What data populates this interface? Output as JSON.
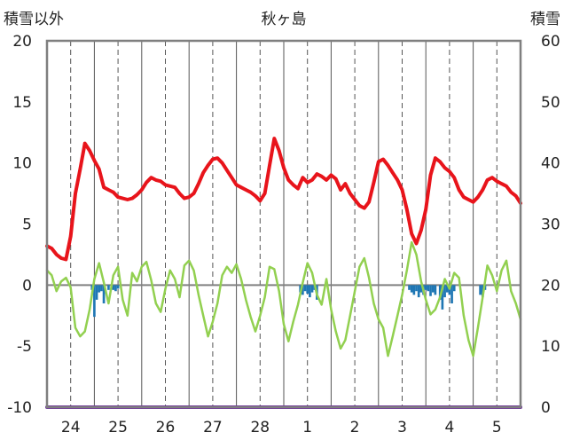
{
  "chart_data": {
    "type": "line",
    "title": "秋ヶ島",
    "left_axis_title": "積雪以外",
    "right_axis_title": "積雪",
    "ylim": [
      -10,
      20
    ],
    "y_ticks": [
      -10,
      -5,
      0,
      5,
      10,
      15,
      20
    ],
    "y2lim": [
      0,
      60
    ],
    "y2_ticks": [
      0,
      10,
      20,
      30,
      40,
      50,
      60
    ],
    "x_tick_labels": [
      "24",
      "25",
      "26",
      "27",
      "28",
      "1",
      "2",
      "3",
      "4",
      "5"
    ],
    "grid": "dashed vertical at each day label, solid vertical between days, no horizontal gridlines",
    "colors": {
      "red": "#e8141b",
      "green": "#92d050",
      "blue": "#1f77b4",
      "purple": "#7030a0",
      "grid": "#555555",
      "frame": "#7f7f7f"
    },
    "series": [
      {
        "color": "red",
        "axis": "left",
        "x": [
          0.0,
          0.1,
          0.2,
          0.3,
          0.4,
          0.5,
          0.6,
          0.7,
          0.8,
          0.9,
          1.0,
          1.1,
          1.2,
          1.3,
          1.4,
          1.5,
          1.6,
          1.7,
          1.8,
          1.9,
          2.0,
          2.1,
          2.2,
          2.3,
          2.4,
          2.5,
          2.6,
          2.7,
          2.8,
          2.9,
          3.0,
          3.1,
          3.2,
          3.3,
          3.4,
          3.5,
          3.6,
          3.7,
          3.8,
          3.9,
          4.0,
          4.1,
          4.2,
          4.3,
          4.4,
          4.5,
          4.6,
          4.7,
          4.8,
          4.9,
          5.0,
          5.1,
          5.2,
          5.3,
          5.4,
          5.5,
          5.6,
          5.7,
          5.8,
          5.9,
          6.0,
          6.1,
          6.2,
          6.3,
          6.4,
          6.5,
          6.6,
          6.7,
          6.8,
          6.9,
          7.0,
          7.1,
          7.2,
          7.3,
          7.4,
          7.5,
          7.6,
          7.7,
          7.8,
          7.9,
          8.0,
          8.1,
          8.2,
          8.3,
          8.4,
          8.5,
          8.6,
          8.7,
          8.8,
          8.9,
          9.0,
          9.1,
          9.2,
          9.3,
          9.4,
          9.5,
          9.6,
          9.7,
          9.8,
          9.9,
          10.0
        ],
        "values": [
          3.2,
          3.0,
          2.5,
          2.2,
          2.1,
          4.0,
          7.5,
          9.5,
          11.6,
          11.0,
          10.2,
          9.5,
          8.0,
          7.8,
          7.6,
          7.2,
          7.1,
          7.0,
          7.1,
          7.4,
          7.8,
          8.4,
          8.8,
          8.6,
          8.5,
          8.2,
          8.1,
          8.0,
          7.5,
          7.1,
          7.2,
          7.5,
          8.3,
          9.2,
          9.8,
          10.3,
          10.4,
          10.0,
          9.4,
          8.8,
          8.2,
          8.0,
          7.8,
          7.6,
          7.3,
          6.9,
          7.5,
          9.8,
          12.0,
          11.0,
          9.6,
          8.6,
          8.2,
          7.9,
          8.8,
          8.4,
          8.6,
          9.1,
          8.9,
          8.6,
          9.0,
          8.7,
          7.8,
          8.3,
          7.5,
          7.0,
          6.5,
          6.3,
          6.8,
          8.4,
          10.1,
          10.3,
          9.8,
          9.2,
          8.6,
          7.8,
          6.2,
          4.2,
          3.4,
          4.5,
          6.2,
          9.0,
          10.4,
          10.1,
          9.6,
          9.3,
          8.8,
          7.8,
          7.2,
          7.0,
          6.8,
          7.2,
          7.8,
          8.6,
          8.8,
          8.5,
          8.3,
          8.1,
          7.6,
          7.3,
          6.7
        ]
      },
      {
        "color": "green",
        "axis": "left",
        "x": [
          0.0,
          0.1,
          0.2,
          0.3,
          0.4,
          0.5,
          0.6,
          0.7,
          0.8,
          0.9,
          1.0,
          1.1,
          1.2,
          1.3,
          1.4,
          1.5,
          1.6,
          1.7,
          1.8,
          1.9,
          2.0,
          2.1,
          2.2,
          2.3,
          2.4,
          2.5,
          2.6,
          2.7,
          2.8,
          2.9,
          3.0,
          3.1,
          3.2,
          3.3,
          3.4,
          3.5,
          3.6,
          3.7,
          3.8,
          3.9,
          4.0,
          4.1,
          4.2,
          4.3,
          4.4,
          4.5,
          4.6,
          4.7,
          4.8,
          4.9,
          5.0,
          5.1,
          5.2,
          5.3,
          5.4,
          5.5,
          5.6,
          5.7,
          5.8,
          5.9,
          6.0,
          6.1,
          6.2,
          6.3,
          6.4,
          6.5,
          6.6,
          6.7,
          6.8,
          6.9,
          7.0,
          7.1,
          7.2,
          7.3,
          7.4,
          7.5,
          7.6,
          7.7,
          7.8,
          7.9,
          8.0,
          8.1,
          8.2,
          8.3,
          8.4,
          8.5,
          8.6,
          8.7,
          8.8,
          8.9,
          9.0,
          9.1,
          9.2,
          9.3,
          9.4,
          9.5,
          9.6,
          9.7,
          9.8,
          9.9,
          10.0
        ],
        "values": [
          1.2,
          0.8,
          -0.5,
          0.3,
          0.6,
          -0.2,
          -3.5,
          -4.2,
          -3.8,
          -2.0,
          0.5,
          1.8,
          0.2,
          -1.5,
          0.8,
          1.5,
          -1.2,
          -2.5,
          1.0,
          0.3,
          1.5,
          1.9,
          0.4,
          -1.5,
          -2.2,
          -0.3,
          1.2,
          0.5,
          -1.0,
          1.6,
          2.0,
          1.2,
          -0.8,
          -2.5,
          -4.2,
          -3.0,
          -1.5,
          0.8,
          1.5,
          1.0,
          1.7,
          0.5,
          -1.2,
          -2.6,
          -3.8,
          -2.5,
          -1.0,
          1.5,
          1.3,
          -0.5,
          -3.2,
          -4.6,
          -3.0,
          -1.6,
          0.2,
          1.8,
          1.0,
          -0.8,
          -1.6,
          0.5,
          -2.0,
          -3.8,
          -5.2,
          -4.5,
          -2.5,
          -0.5,
          1.5,
          2.2,
          0.6,
          -1.5,
          -2.8,
          -3.5,
          -5.8,
          -4.2,
          -2.5,
          -0.8,
          1.2,
          3.5,
          2.5,
          0.3,
          -1.2,
          -2.4,
          -2.0,
          -1.0,
          0.5,
          -0.3,
          1.0,
          0.6,
          -2.5,
          -4.5,
          -5.8,
          -3.5,
          -1.0,
          1.6,
          0.8,
          -0.5,
          1.2,
          2.0,
          -0.5,
          -1.5,
          -2.8
        ]
      },
      {
        "color": "purple",
        "axis": "left",
        "x": [
          0.0,
          10.0
        ],
        "values": [
          -10,
          -10
        ]
      },
      {
        "color": "blue",
        "axis": "left",
        "type": "bar",
        "x": [
          0.95,
          1.0,
          1.05,
          1.1,
          1.15,
          1.2,
          1.3,
          1.4,
          1.45,
          1.5,
          5.35,
          5.4,
          5.45,
          5.5,
          5.55,
          5.6,
          5.65,
          5.7,
          7.65,
          7.7,
          7.75,
          7.8,
          7.85,
          7.9,
          7.95,
          8.0,
          8.05,
          8.1,
          8.15,
          8.2,
          8.3,
          8.35,
          8.4,
          8.45,
          8.5,
          8.55,
          8.6,
          9.15,
          9.2,
          9.25
        ],
        "values": [
          -0.4,
          -2.6,
          -1.2,
          -0.6,
          -0.5,
          -1.5,
          -0.4,
          -0.4,
          -0.5,
          -0.3,
          -0.6,
          -0.8,
          -0.5,
          -0.7,
          -1.0,
          -0.6,
          -0.4,
          -1.2,
          -0.4,
          -0.6,
          -0.8,
          -0.5,
          -1.0,
          -0.6,
          -0.8,
          -0.4,
          -0.5,
          -0.9,
          -0.6,
          -0.8,
          -1.2,
          -2.0,
          -1.0,
          -0.6,
          -0.8,
          -1.5,
          -0.5,
          -0.8,
          -1.0,
          -0.4
        ]
      }
    ]
  }
}
